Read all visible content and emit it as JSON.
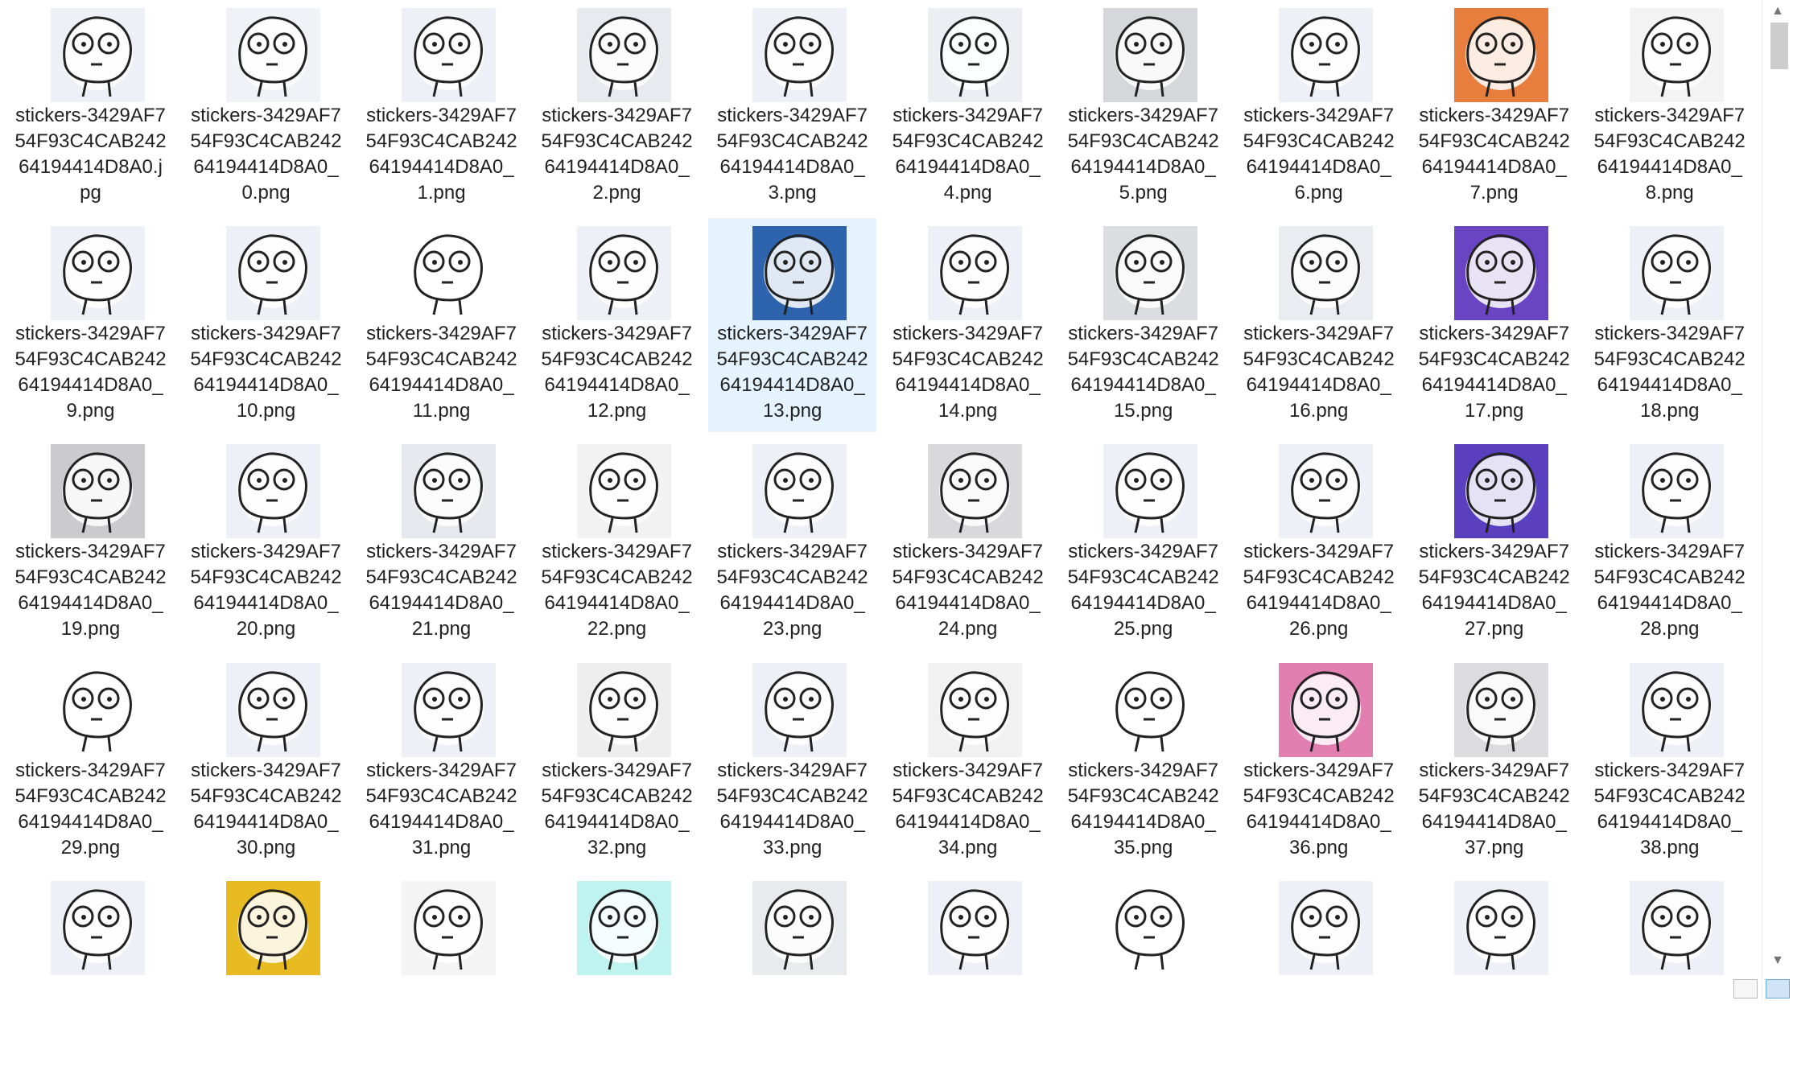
{
  "view": {
    "columns": 10,
    "selected_index": 14,
    "selection_color": "#e5f3ff"
  },
  "files": [
    {
      "name": "stickers-3429AF7\n54F93C4CAB242\n64194414D8A0.j\npg",
      "bg": "#eef0f8"
    },
    {
      "name": "stickers-3429AF7\n54F93C4CAB242\n64194414D8A0_\n0.png",
      "bg": "#f1f2f7"
    },
    {
      "name": "stickers-3429AF7\n54F93C4CAB242\n64194414D8A0_\n1.png",
      "bg": "#eef0f8"
    },
    {
      "name": "stickers-3429AF7\n54F93C4CAB242\n64194414D8A0_\n2.png",
      "bg": "#e9eaf0"
    },
    {
      "name": "stickers-3429AF7\n54F93C4CAB242\n64194414D8A0_\n3.png",
      "bg": "#eef0f8"
    },
    {
      "name": "stickers-3429AF7\n54F93C4CAB242\n64194414D8A0_\n4.png",
      "bg": "#eceef4"
    },
    {
      "name": "stickers-3429AF7\n54F93C4CAB242\n64194414D8A0_\n5.png",
      "bg": "#d6d7da"
    },
    {
      "name": "stickers-3429AF7\n54F93C4CAB242\n64194414D8A0_\n6.png",
      "bg": "#eef0f8"
    },
    {
      "name": "stickers-3429AF7\n54F93C4CAB242\n64194414D8A0_\n7.png",
      "bg": "#e87e3e"
    },
    {
      "name": "stickers-3429AF7\n54F93C4CAB242\n64194414D8A0_\n8.png",
      "bg": "#f3f3f3"
    },
    {
      "name": "stickers-3429AF7\n54F93C4CAB242\n64194414D8A0_\n9.png",
      "bg": "#eef0f8"
    },
    {
      "name": "stickers-3429AF7\n54F93C4CAB242\n64194414D8A0_\n10.png",
      "bg": "#eef0f8"
    },
    {
      "name": "stickers-3429AF7\n54F93C4CAB242\n64194414D8A0_\n11.png",
      "bg": "#ffffff"
    },
    {
      "name": "stickers-3429AF7\n54F93C4CAB242\n64194414D8A0_\n12.png",
      "bg": "#eef0f8"
    },
    {
      "name": "stickers-3429AF7\n54F93C4CAB242\n64194414D8A0_\n13.png",
      "bg": "#2e64ad"
    },
    {
      "name": "stickers-3429AF7\n54F93C4CAB242\n64194414D8A0_\n14.png",
      "bg": "#eef0f8"
    },
    {
      "name": "stickers-3429AF7\n54F93C4CAB242\n64194414D8A0_\n15.png",
      "bg": "#dcdde1"
    },
    {
      "name": "stickers-3429AF7\n54F93C4CAB242\n64194414D8A0_\n16.png",
      "bg": "#eaecf2"
    },
    {
      "name": "stickers-3429AF7\n54F93C4CAB242\n64194414D8A0_\n17.png",
      "bg": "#6a45c3"
    },
    {
      "name": "stickers-3429AF7\n54F93C4CAB242\n64194414D8A0_\n18.png",
      "bg": "#eef0f8"
    },
    {
      "name": "stickers-3429AF7\n54F93C4CAB242\n64194414D8A0_\n19.png",
      "bg": "#cbcbcd"
    },
    {
      "name": "stickers-3429AF7\n54F93C4CAB242\n64194414D8A0_\n20.png",
      "bg": "#eef0f8"
    },
    {
      "name": "stickers-3429AF7\n54F93C4CAB242\n64194414D8A0_\n21.png",
      "bg": "#e8e9ee"
    },
    {
      "name": "stickers-3429AF7\n54F93C4CAB242\n64194414D8A0_\n22.png",
      "bg": "#f2f2f2"
    },
    {
      "name": "stickers-3429AF7\n54F93C4CAB242\n64194414D8A0_\n23.png",
      "bg": "#eef0f8"
    },
    {
      "name": "stickers-3429AF7\n54F93C4CAB242\n64194414D8A0_\n24.png",
      "bg": "#d9d9dc"
    },
    {
      "name": "stickers-3429AF7\n54F93C4CAB242\n64194414D8A0_\n25.png",
      "bg": "#eef0f8"
    },
    {
      "name": "stickers-3429AF7\n54F93C4CAB242\n64194414D8A0_\n26.png",
      "bg": "#eef0f8"
    },
    {
      "name": "stickers-3429AF7\n54F93C4CAB242\n64194414D8A0_\n27.png",
      "bg": "#5a3fbe"
    },
    {
      "name": "stickers-3429AF7\n54F93C4CAB242\n64194414D8A0_\n28.png",
      "bg": "#eef0f8"
    },
    {
      "name": "stickers-3429AF7\n54F93C4CAB242\n64194414D8A0_\n29.png",
      "bg": "#ffffff"
    },
    {
      "name": "stickers-3429AF7\n54F93C4CAB242\n64194414D8A0_\n30.png",
      "bg": "#eef0f8"
    },
    {
      "name": "stickers-3429AF7\n54F93C4CAB242\n64194414D8A0_\n31.png",
      "bg": "#eef0f8"
    },
    {
      "name": "stickers-3429AF7\n54F93C4CAB242\n64194414D8A0_\n32.png",
      "bg": "#eeeeee"
    },
    {
      "name": "stickers-3429AF7\n54F93C4CAB242\n64194414D8A0_\n33.png",
      "bg": "#eef0f8"
    },
    {
      "name": "stickers-3429AF7\n54F93C4CAB242\n64194414D8A0_\n34.png",
      "bg": "#f1f1f1"
    },
    {
      "name": "stickers-3429AF7\n54F93C4CAB242\n64194414D8A0_\n35.png",
      "bg": "#ffffff"
    },
    {
      "name": "stickers-3429AF7\n54F93C4CAB242\n64194414D8A0_\n36.png",
      "bg": "#e27fb1"
    },
    {
      "name": "stickers-3429AF7\n54F93C4CAB242\n64194414D8A0_\n37.png",
      "bg": "#dcdce0"
    },
    {
      "name": "stickers-3429AF7\n54F93C4CAB242\n64194414D8A0_\n38.png",
      "bg": "#eef0f8"
    },
    {
      "name": "",
      "bg": "#eef0f8"
    },
    {
      "name": "",
      "bg": "#e9bb22"
    },
    {
      "name": "",
      "bg": "#f4f4f4"
    },
    {
      "name": "",
      "bg": "#bff3f0"
    },
    {
      "name": "",
      "bg": "#e9eaee"
    },
    {
      "name": "",
      "bg": "#eef0f8"
    },
    {
      "name": "",
      "bg": "#ffffff"
    },
    {
      "name": "",
      "bg": "#eef0f8"
    },
    {
      "name": "",
      "bg": "#eef0f8"
    },
    {
      "name": "",
      "bg": "#eef0f8"
    }
  ]
}
